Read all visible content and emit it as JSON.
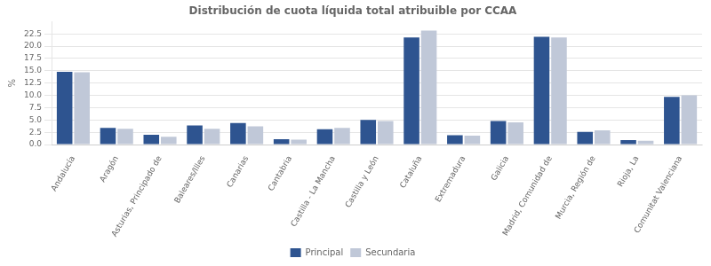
{
  "chart_data": {
    "type": "bar",
    "title": "Distribución de cuota líquida total atribuible por CCAA",
    "ylabel": "%",
    "categories": [
      "Andalucía",
      "Aragón",
      "Asturias, Principado de",
      "Baleares/Illes",
      "Canarias",
      "Cantabria",
      "Castilla - La Mancha",
      "Castilla y León",
      "Cataluña",
      "Extremadura",
      "Galicia",
      "Madrid, Comunidad de",
      "Murcia, Región de",
      "Rioja, La",
      "Comunitat Valenciana"
    ],
    "series": [
      {
        "name": "Principal",
        "color": "#2E5490",
        "values": [
          14.8,
          3.4,
          2.0,
          3.9,
          4.4,
          1.1,
          3.1,
          5.0,
          21.8,
          1.9,
          4.8,
          21.9,
          2.6,
          0.9,
          9.7
        ]
      },
      {
        "name": "Secundaria",
        "color": "#C0C8D8",
        "values": [
          14.7,
          3.2,
          1.6,
          3.2,
          3.7,
          1.0,
          3.4,
          4.8,
          23.2,
          1.8,
          4.5,
          21.8,
          2.9,
          0.8,
          10.0
        ]
      }
    ],
    "ylim": [
      0,
      25
    ],
    "yticks": [
      {
        "value": 0,
        "label": "0.0"
      },
      2.5,
      {
        "value": 5,
        "label": "5.0"
      },
      7.5,
      {
        "value": 10,
        "label": "10.0"
      },
      12.5,
      {
        "value": 15,
        "label": "15.0"
      },
      17.5,
      {
        "value": 20,
        "label": "20.0"
      },
      22.5
    ],
    "grid": "y",
    "legend": "bottom"
  }
}
